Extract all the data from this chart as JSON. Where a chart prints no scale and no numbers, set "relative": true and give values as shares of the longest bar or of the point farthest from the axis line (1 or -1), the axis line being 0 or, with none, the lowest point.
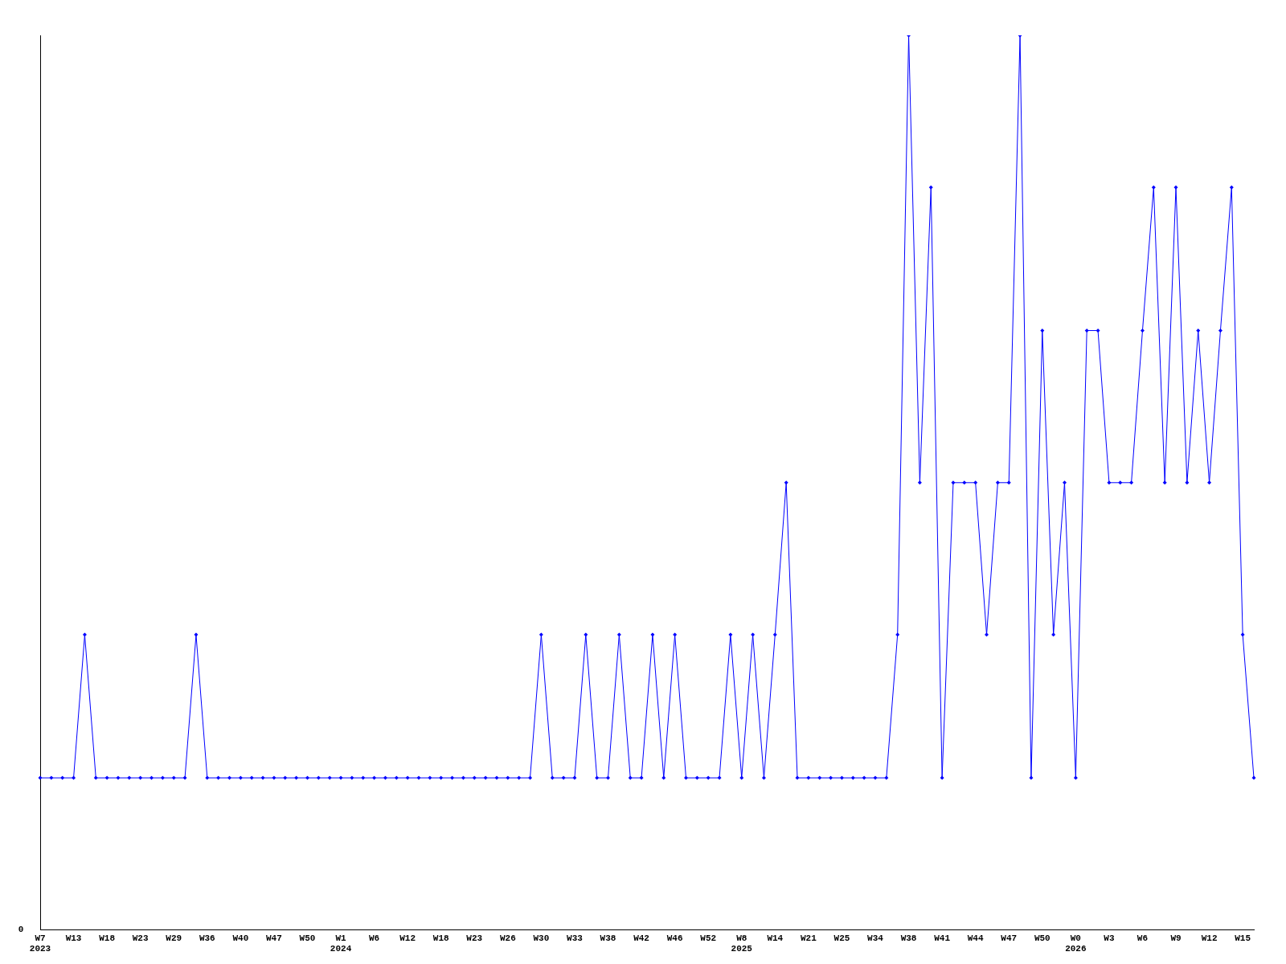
{
  "chart_data": {
    "type": "line",
    "relative": true,
    "annotations": [
      "0"
    ],
    "categories": [
      "W7\n2023",
      null,
      null,
      "W13",
      null,
      null,
      "W18",
      null,
      null,
      "W23",
      null,
      null,
      "W29",
      null,
      null,
      "W36",
      null,
      null,
      "W40",
      null,
      null,
      "W47",
      null,
      null,
      "W50",
      null,
      null,
      "W1\n2024",
      null,
      null,
      "W6",
      null,
      null,
      "W12",
      null,
      null,
      "W18",
      null,
      null,
      "W23",
      null,
      null,
      "W26",
      null,
      null,
      "W30",
      null,
      null,
      "W33",
      null,
      null,
      "W38",
      null,
      null,
      "W42",
      null,
      null,
      "W46",
      null,
      null,
      "W52",
      null,
      null,
      "W8\n2025",
      null,
      null,
      "W14",
      null,
      null,
      "W21",
      null,
      null,
      "W25",
      null,
      null,
      "W34",
      null,
      null,
      "W38",
      null,
      null,
      "W41",
      null,
      null,
      "W44",
      null,
      null,
      "W47",
      null,
      null,
      "W50",
      null,
      null,
      "W0\n2026",
      null,
      null,
      "W3",
      null,
      null,
      "W6",
      null,
      null,
      "W9",
      null,
      null,
      "W12",
      null,
      null,
      "W15",
      null
    ],
    "series": [
      {
        "color": "#0000ff",
        "values": [
          0.17,
          0.17,
          0.17,
          0.17,
          0.33,
          0.17,
          0.17,
          0.17,
          0.17,
          0.17,
          0.17,
          0.17,
          0.17,
          0.17,
          0.33,
          0.17,
          0.17,
          0.17,
          0.17,
          0.17,
          0.17,
          0.17,
          0.17,
          0.17,
          0.17,
          0.17,
          0.17,
          0.17,
          0.17,
          0.17,
          0.17,
          0.17,
          0.17,
          0.17,
          0.17,
          0.17,
          0.17,
          0.17,
          0.17,
          0.17,
          0.17,
          0.17,
          0.17,
          0.17,
          0.17,
          0.33,
          0.17,
          0.17,
          0.17,
          0.33,
          0.17,
          0.17,
          0.33,
          0.17,
          0.17,
          0.33,
          0.17,
          0.33,
          0.17,
          0.17,
          0.17,
          0.17,
          0.33,
          0.17,
          0.33,
          0.17,
          0.33,
          0.5,
          0.17,
          0.17,
          0.17,
          0.17,
          0.17,
          0.17,
          0.17,
          0.17,
          0.17,
          0.33,
          1,
          0.5,
          0.83,
          0.17,
          0.5,
          0.5,
          0.5,
          0.33,
          0.5,
          0.5,
          1,
          0.17,
          0.67,
          0.33,
          0.5,
          0.17,
          0.67,
          0.67,
          0.5,
          0.5,
          0.5,
          0.67,
          0.83,
          0.5,
          0.83,
          0.5,
          0.67,
          0.5,
          0.67,
          0.83,
          0.33,
          0.17
        ]
      }
    ],
    "marker": "diamond",
    "grid": false,
    "legend": false
  }
}
